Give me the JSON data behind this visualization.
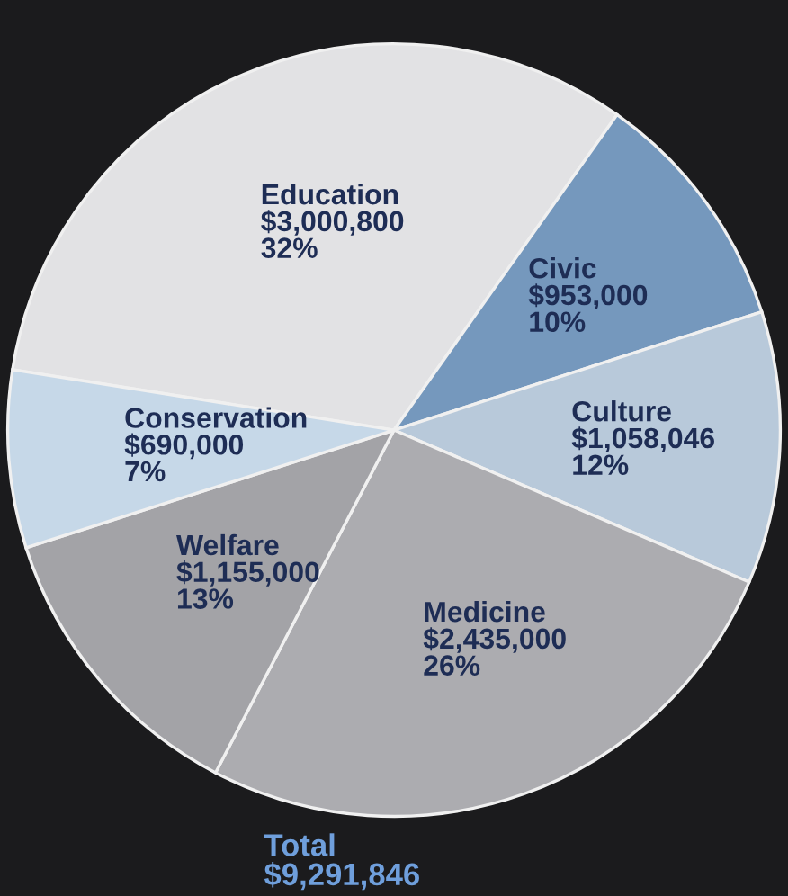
{
  "chart_data": {
    "type": "pie",
    "categories": [
      "Education",
      "Civic",
      "Culture",
      "Medicine",
      "Welfare",
      "Conservation"
    ],
    "values": [
      3000800,
      953000,
      1058046,
      2435000,
      1155000,
      690000
    ],
    "value_labels": [
      "$3,000,800\n32%",
      "$953,000\n10%",
      "$1,058,046\n12%",
      "$2,435,000\n26%",
      "$1,155,000\n13%",
      "$690,000\n7%"
    ],
    "colors": [
      "#e2e2e4",
      "#7598bd",
      "#b8c9da",
      "#acacb0",
      "#a3a3a7",
      "#c6d8e8"
    ],
    "annotations": [
      "Total\n$9,291,846"
    ]
  }
}
